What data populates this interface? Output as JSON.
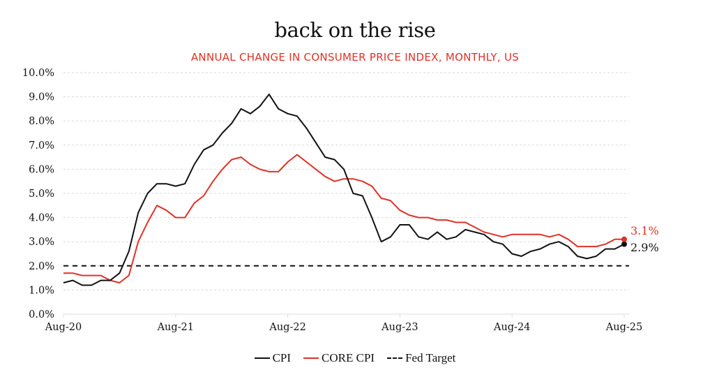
{
  "header": {
    "title": "back on the rise",
    "subtitle": "ANNUAL CHANGE IN CONSUMER PRICE INDEX, MONTHLY, US"
  },
  "colors": {
    "cpi": "#111111",
    "core_cpi": "#e03127",
    "fed_target": "#111111",
    "grid": "#d9d9d9",
    "subtitle": "#e03127"
  },
  "legend": {
    "items": [
      {
        "label": "CPI",
        "style": "solid",
        "color": "#111111"
      },
      {
        "label": "CORE CPI",
        "style": "solid",
        "color": "#e03127"
      },
      {
        "label": "Fed Target",
        "style": "dashed",
        "color": "#111111"
      }
    ]
  },
  "chart_data": {
    "type": "line",
    "title": "back on the rise",
    "subtitle": "ANNUAL CHANGE IN CONSUMER PRICE INDEX, MONTHLY, US",
    "xlabel": "",
    "ylabel": "",
    "x_start": "Aug-20",
    "x_end": "Aug-25",
    "x_ticks": [
      "Aug-20",
      "Aug-21",
      "Aug-22",
      "Aug-23",
      "Aug-24",
      "Aug-25"
    ],
    "x_tick_month_index": [
      0,
      12,
      24,
      36,
      48,
      60
    ],
    "y_ticks": [
      "0.0%",
      "1.0%",
      "2.0%",
      "3.0%",
      "4.0%",
      "5.0%",
      "6.0%",
      "7.0%",
      "8.0%",
      "9.0%",
      "10.0%"
    ],
    "ylim": [
      0,
      10
    ],
    "grid": "horizontal-dotted",
    "legend_position": "bottom-center",
    "series": [
      {
        "name": "CPI",
        "values": [
          1.3,
          1.4,
          1.2,
          1.2,
          1.4,
          1.4,
          1.7,
          2.6,
          4.2,
          5.0,
          5.4,
          5.4,
          5.3,
          5.4,
          6.2,
          6.8,
          7.0,
          7.5,
          7.9,
          8.5,
          8.3,
          8.6,
          9.1,
          8.5,
          8.3,
          8.2,
          7.7,
          7.1,
          6.5,
          6.4,
          6.0,
          5.0,
          4.9,
          4.0,
          3.0,
          3.2,
          3.7,
          3.7,
          3.2,
          3.1,
          3.4,
          3.1,
          3.2,
          3.5,
          3.4,
          3.3,
          3.0,
          2.9,
          2.5,
          2.4,
          2.6,
          2.7,
          2.9,
          3.0,
          2.8,
          2.4,
          2.3,
          2.4,
          2.7,
          2.7,
          2.9
        ]
      },
      {
        "name": "CORE CPI",
        "values": [
          1.7,
          1.7,
          1.6,
          1.6,
          1.6,
          1.4,
          1.3,
          1.6,
          3.0,
          3.8,
          4.5,
          4.3,
          4.0,
          4.0,
          4.6,
          4.9,
          5.5,
          6.0,
          6.4,
          6.5,
          6.2,
          6.0,
          5.9,
          5.9,
          6.3,
          6.6,
          6.3,
          6.0,
          5.7,
          5.5,
          5.6,
          5.6,
          5.5,
          5.3,
          4.8,
          4.7,
          4.3,
          4.1,
          4.0,
          4.0,
          3.9,
          3.9,
          3.8,
          3.8,
          3.6,
          3.4,
          3.3,
          3.2,
          3.3,
          3.3,
          3.3,
          3.3,
          3.2,
          3.3,
          3.1,
          2.8,
          2.8,
          2.8,
          2.9,
          3.1,
          3.1
        ]
      },
      {
        "name": "Fed Target",
        "values": [
          2.0,
          2.0
        ]
      }
    ],
    "annotations": [
      {
        "series": "CORE CPI",
        "label": "3.1%",
        "x": "Aug-25",
        "y": 3.1,
        "color": "#e03127"
      },
      {
        "series": "CPI",
        "label": "2.9%",
        "x": "Aug-25",
        "y": 2.9,
        "color": "#111111"
      }
    ]
  }
}
